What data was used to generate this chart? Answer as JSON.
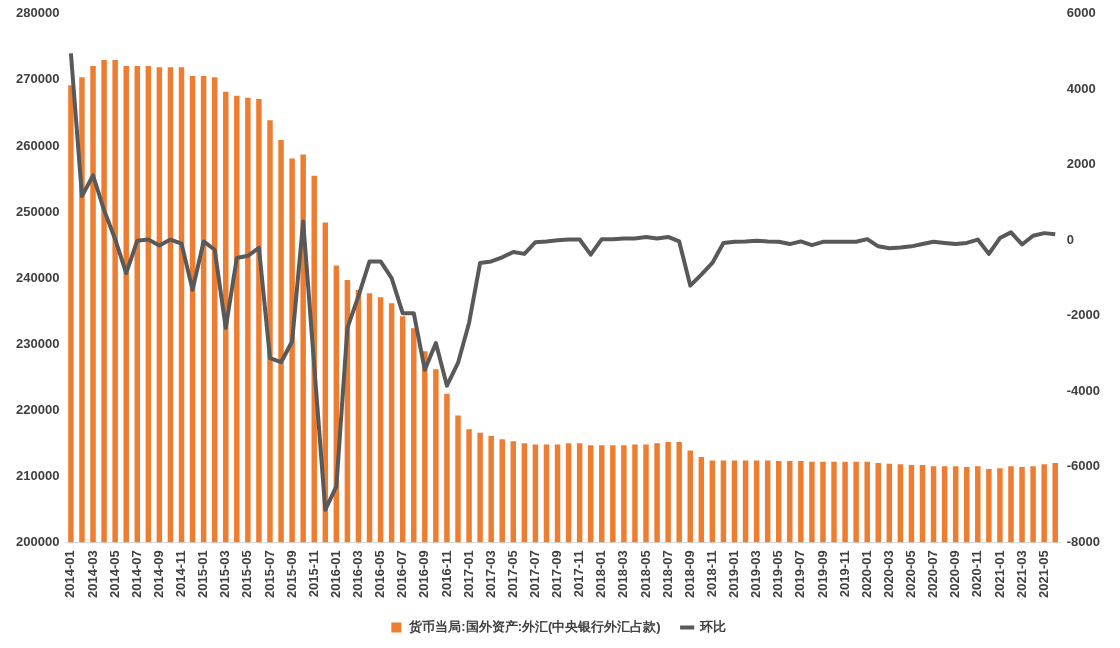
{
  "chart_data": {
    "type": "bar",
    "categories": [
      "2014-01",
      null,
      "2014-03",
      null,
      "2014-05",
      null,
      "2014-07",
      null,
      "2014-09",
      null,
      "2014-11",
      null,
      "2015-01",
      null,
      "2015-03",
      null,
      "2015-05",
      null,
      "2015-07",
      null,
      "2015-09",
      null,
      "2015-11",
      null,
      "2016-01",
      null,
      "2016-03",
      null,
      "2016-05",
      null,
      "2016-07",
      null,
      "2016-09",
      null,
      "2016-11",
      null,
      "2017-01",
      null,
      "2017-03",
      null,
      "2017-05",
      null,
      "2017-07",
      null,
      "2017-09",
      null,
      "2017-11",
      null,
      "2018-01",
      null,
      "2018-03",
      null,
      "2018-05",
      null,
      "2018-07",
      null,
      "2018-09",
      null,
      "2018-11",
      null,
      "2019-01",
      null,
      "2019-03",
      null,
      "2019-05",
      null,
      "2019-07",
      null,
      "2019-09",
      null,
      "2019-11",
      null,
      "2020-01",
      null,
      "2020-03",
      null,
      "2020-05",
      null,
      "2020-07",
      null,
      "2020-09",
      null,
      "2020-11",
      null,
      "2021-01",
      null,
      "2021-03",
      null,
      "2021-05",
      null
    ],
    "series": [
      {
        "name": "货币当局:国外资产:外汇(中央银行外汇占款)",
        "color": "#ed7d31",
        "values": [
          269200,
          270400,
          272100,
          273000,
          273000,
          272100,
          272100,
          272100,
          271900,
          271900,
          271900,
          270600,
          270600,
          270400,
          268200,
          267600,
          267300,
          267100,
          263900,
          260900,
          258100,
          258700,
          255500,
          248400,
          241900,
          239700,
          238200,
          237700,
          237100,
          236200,
          234200,
          232400,
          228900,
          226200,
          222500,
          219200,
          217100,
          216600,
          216100,
          215600,
          215300,
          215000,
          214800,
          214800,
          214800,
          215000,
          215000,
          214700,
          214700,
          214700,
          214700,
          214800,
          214800,
          215000,
          215200,
          215200,
          213900,
          212900,
          212400,
          212400,
          212400,
          212400,
          212400,
          212400,
          212300,
          212300,
          212300,
          212200,
          212200,
          212200,
          212200,
          212200,
          212200,
          212000,
          211900,
          211800,
          211700,
          211700,
          211500,
          211500,
          211500,
          211400,
          211500,
          211100,
          211200,
          211500,
          211400,
          211500,
          211800,
          212000
        ]
      },
      {
        "name": "环比",
        "type": "line",
        "axis": "y2",
        "color": "#595959",
        "values": [
          4950,
          1170,
          1720,
          800,
          30,
          -870,
          -10,
          20,
          -140,
          20,
          -90,
          -1310,
          -30,
          -250,
          -2320,
          -470,
          -410,
          -200,
          -3120,
          -3230,
          -2680,
          500,
          -3320,
          -7140,
          -6520,
          -2320,
          -1480,
          -560,
          -560,
          -1000,
          -1930,
          -1930,
          -3430,
          -2720,
          -3850,
          -3250,
          -2190,
          -600,
          -560,
          -450,
          -310,
          -360,
          -50,
          -30,
          0,
          20,
          20,
          -380,
          30,
          30,
          50,
          50,
          90,
          50,
          90,
          -30,
          -1200,
          -910,
          -600,
          -70,
          -40,
          -30,
          -10,
          -30,
          -40,
          -100,
          -30,
          -130,
          -40,
          -40,
          -40,
          -40,
          30,
          -160,
          -210,
          -190,
          -160,
          -100,
          -40,
          -70,
          -100,
          -70,
          20,
          -360,
          60,
          210,
          -110,
          120,
          190,
          160
        ]
      }
    ],
    "ylim": [
      200000,
      280000
    ],
    "yticks": [
      200000,
      210000,
      220000,
      230000,
      240000,
      250000,
      260000,
      270000,
      280000
    ],
    "y2lim": [
      -8000,
      6000
    ],
    "y2ticks": [
      -8000,
      -6000,
      -4000,
      -2000,
      0,
      2000,
      4000,
      6000
    ],
    "grid": false,
    "legend": "bottom",
    "marker": "none",
    "line_style": "solid"
  }
}
